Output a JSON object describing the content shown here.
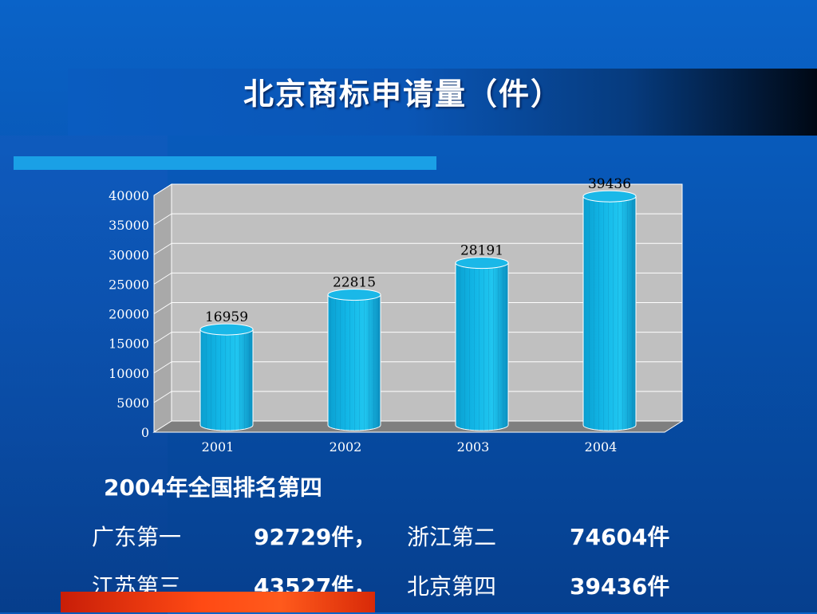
{
  "slide": {
    "title": "北京商标申请量（件）",
    "ranking_heading": "2004年全国排名第四",
    "ranking": [
      {
        "label": "广东第一",
        "value": "92729件，"
      },
      {
        "label": "浙江第二",
        "value": "74604件"
      },
      {
        "label": "江苏第三",
        "value": "43527件，"
      },
      {
        "label": "北京第四",
        "value": "39436件"
      }
    ]
  },
  "colors": {
    "background": "#0752ae",
    "plot_background": "#c0c0c0",
    "bar": "#12b6e6",
    "floor": "#7f7f7f"
  },
  "chart_data": {
    "type": "bar",
    "style": "3d-cylinder",
    "categories": [
      "2001",
      "2002",
      "2003",
      "2004"
    ],
    "values": [
      16959,
      22815,
      28191,
      39436
    ],
    "data_labels": [
      "16959",
      "22815",
      "28191",
      "39436"
    ],
    "ylim": [
      0,
      40000
    ],
    "yticks": [
      0,
      5000,
      10000,
      15000,
      20000,
      25000,
      30000,
      35000,
      40000
    ],
    "grid": true,
    "legend": "none"
  }
}
